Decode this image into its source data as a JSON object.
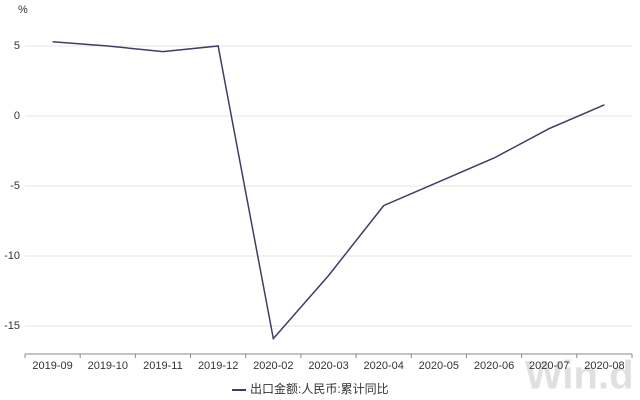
{
  "chart_data": {
    "type": "line",
    "y_unit": "%",
    "categories": [
      "2019-09",
      "2019-10",
      "2019-11",
      "2019-12",
      "2020-02",
      "2020-03",
      "2020-04",
      "2020-05",
      "2020-06",
      "2020-07",
      "2020-08"
    ],
    "series": [
      {
        "name": "出口金额:人民币:累计同比",
        "color": "#3b3f68",
        "values": [
          5.3,
          5.0,
          4.6,
          5.0,
          -15.9,
          -11.4,
          -6.4,
          -4.7,
          -3.0,
          -0.9,
          0.8
        ]
      }
    ],
    "ylim": [
      -17,
      7
    ],
    "yticks": [
      5,
      0,
      -5,
      -10,
      -15
    ],
    "grid": true,
    "watermark": "Win.d"
  }
}
